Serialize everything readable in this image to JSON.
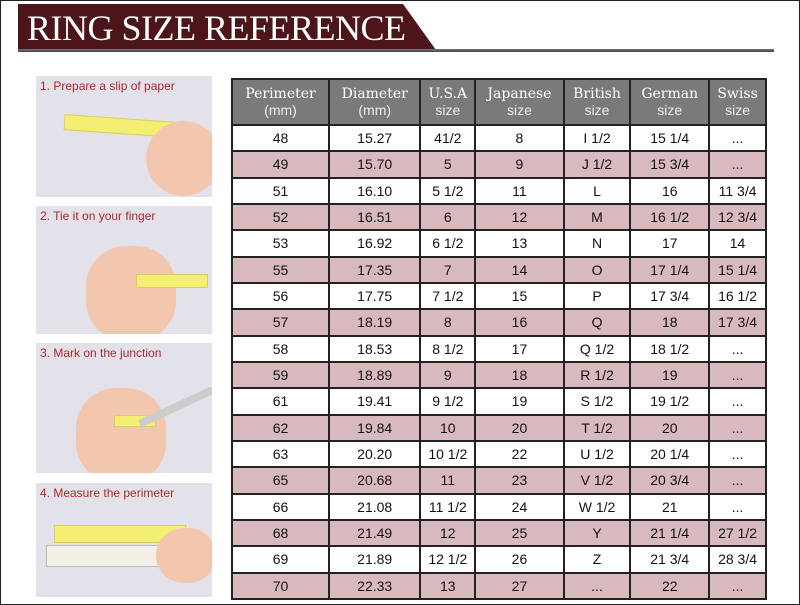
{
  "header": {
    "title": "RING SIZE REFERENCE",
    "accent": "#4b1519"
  },
  "steps": [
    {
      "label": "1. Prepare a slip of paper"
    },
    {
      "label": "2. Tie it on your finger"
    },
    {
      "label": "3. Mark on the junction"
    },
    {
      "label": "4. Measure the perimeter"
    }
  ],
  "table": {
    "columns": [
      {
        "name": "Perimeter",
        "sub": "(mm)"
      },
      {
        "name": "Diameter",
        "sub": "(mm)"
      },
      {
        "name": "U.S.A",
        "sub": "size"
      },
      {
        "name": "Japanese",
        "sub": "size"
      },
      {
        "name": "British",
        "sub": "size"
      },
      {
        "name": "German",
        "sub": "size"
      },
      {
        "name": "Swiss",
        "sub": "size"
      }
    ],
    "rows": [
      [
        "48",
        "15.27",
        "41/2",
        "8",
        "I 1/2",
        "15 1/4",
        "..."
      ],
      [
        "49",
        "15.70",
        "5",
        "9",
        "J 1/2",
        "15 3/4",
        "..."
      ],
      [
        "51",
        "16.10",
        "5 1/2",
        "11",
        "L",
        "16",
        "11 3/4"
      ],
      [
        "52",
        "16.51",
        "6",
        "12",
        "M",
        "16 1/2",
        "12 3/4"
      ],
      [
        "53",
        "16.92",
        "6 1/2",
        "13",
        "N",
        "17",
        "14"
      ],
      [
        "55",
        "17.35",
        "7",
        "14",
        "O",
        "17 1/4",
        "15 1/4"
      ],
      [
        "56",
        "17.75",
        "7 1/2",
        "15",
        "P",
        "17 3/4",
        "16 1/2"
      ],
      [
        "57",
        "18.19",
        "8",
        "16",
        "Q",
        "18",
        "17 3/4"
      ],
      [
        "58",
        "18.53",
        "8 1/2",
        "17",
        "Q  1/2",
        "18 1/2",
        "..."
      ],
      [
        "59",
        "18.89",
        "9",
        "18",
        "R 1/2",
        "19",
        "..."
      ],
      [
        "61",
        "19.41",
        "9 1/2",
        "19",
        "S 1/2",
        "19 1/2",
        "..."
      ],
      [
        "62",
        "19.84",
        "10",
        "20",
        "T 1/2",
        "20",
        "..."
      ],
      [
        "63",
        "20.20",
        "10 1/2",
        "22",
        "U 1/2",
        "20 1/4",
        "..."
      ],
      [
        "65",
        "20.68",
        "11",
        "23",
        "V 1/2",
        "20 3/4",
        "..."
      ],
      [
        "66",
        "21.08",
        "11 1/2",
        "24",
        "W 1/2",
        "21",
        "..."
      ],
      [
        "68",
        "21.49",
        "12",
        "25",
        "Y",
        "21 1/4",
        "27 1/2"
      ],
      [
        "69",
        "21.89",
        "12 1/2",
        "26",
        "Z",
        "21 3/4",
        "28 3/4"
      ],
      [
        "70",
        "22.33",
        "13",
        "27",
        "...",
        "22",
        "..."
      ]
    ],
    "header_bg": "#7a7a7c",
    "alt_row_bg": "#d8b9bd"
  }
}
